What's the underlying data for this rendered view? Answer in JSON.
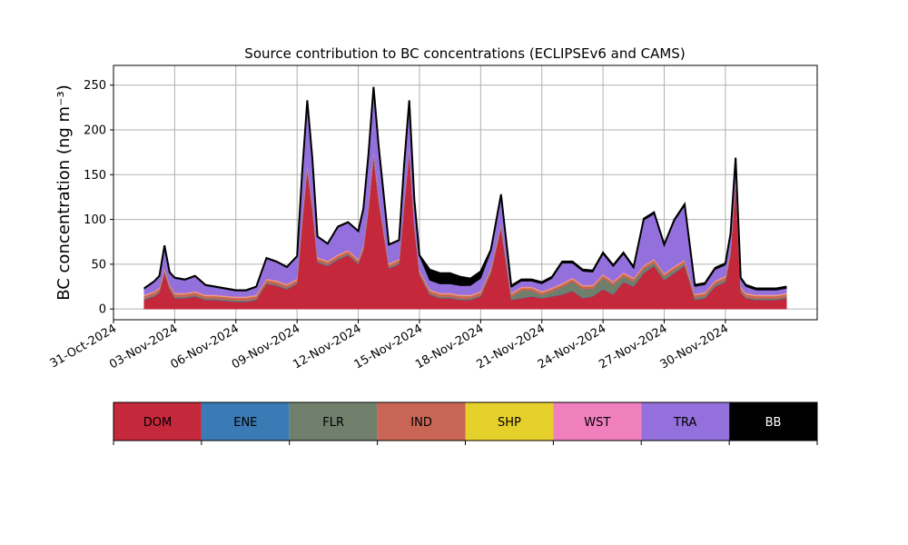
{
  "chart_data": {
    "type": "area",
    "stacked": true,
    "title": "Source contribution to BC concentrations (ECLIPSEv6 and CAMS)",
    "ylabel": "BC concentration (ng m⁻³)",
    "xlabel": "",
    "ylim": [
      -12,
      272
    ],
    "xlim": [
      "2024-10-31T00:00",
      "2024-12-04T12:00"
    ],
    "yticks": [
      0,
      50,
      100,
      150,
      200,
      250
    ],
    "xtick_labels": [
      "31-Oct-2024",
      "03-Nov-2024",
      "06-Nov-2024",
      "09-Nov-2024",
      "12-Nov-2024",
      "15-Nov-2024",
      "18-Nov-2024",
      "21-Nov-2024",
      "24-Nov-2024",
      "27-Nov-2024",
      "30-Nov-2024"
    ],
    "xtick_dates": [
      "2024-10-31",
      "2024-11-03",
      "2024-11-06",
      "2024-11-09",
      "2024-11-12",
      "2024-11-15",
      "2024-11-18",
      "2024-11-21",
      "2024-11-24",
      "2024-11-27",
      "2024-11-30"
    ],
    "grid": true,
    "x": [
      "2024-11-01T12:00",
      "2024-11-02T00:00",
      "2024-11-02T06:00",
      "2024-11-02T12:00",
      "2024-11-02T18:00",
      "2024-11-03T00:00",
      "2024-11-03T12:00",
      "2024-11-04T00:00",
      "2024-11-04T12:00",
      "2024-11-05T00:00",
      "2024-11-05T12:00",
      "2024-11-06T00:00",
      "2024-11-06T12:00",
      "2024-11-07T00:00",
      "2024-11-07T12:00",
      "2024-11-08T00:00",
      "2024-11-08T12:00",
      "2024-11-09T00:00",
      "2024-11-09T06:00",
      "2024-11-09T12:00",
      "2024-11-09T18:00",
      "2024-11-10T00:00",
      "2024-11-10T12:00",
      "2024-11-11T00:00",
      "2024-11-11T12:00",
      "2024-11-12T00:00",
      "2024-11-12T06:00",
      "2024-11-12T12:00",
      "2024-11-12T18:00",
      "2024-11-13T00:00",
      "2024-11-13T12:00",
      "2024-11-14T00:00",
      "2024-11-14T06:00",
      "2024-11-14T12:00",
      "2024-11-14T18:00",
      "2024-11-15T00:00",
      "2024-11-15T12:00",
      "2024-11-16T00:00",
      "2024-11-16T12:00",
      "2024-11-17T00:00",
      "2024-11-17T12:00",
      "2024-11-18T00:00",
      "2024-11-18T12:00",
      "2024-11-19T00:00",
      "2024-11-19T12:00",
      "2024-11-20T00:00",
      "2024-11-20T12:00",
      "2024-11-21T00:00",
      "2024-11-21T12:00",
      "2024-11-22T00:00",
      "2024-11-22T12:00",
      "2024-11-23T00:00",
      "2024-11-23T12:00",
      "2024-11-24T00:00",
      "2024-11-24T12:00",
      "2024-11-25T00:00",
      "2024-11-25T12:00",
      "2024-11-26T00:00",
      "2024-11-26T12:00",
      "2024-11-27T00:00",
      "2024-11-27T12:00",
      "2024-11-28T00:00",
      "2024-11-28T12:00",
      "2024-11-29T00:00",
      "2024-11-29T12:00",
      "2024-11-30T00:00",
      "2024-11-30T06:00",
      "2024-11-30T12:00",
      "2024-11-30T18:00",
      "2024-12-01T00:00",
      "2024-12-01T12:00",
      "2024-12-02T00:00",
      "2024-12-02T12:00",
      "2024-12-03T00:00"
    ],
    "series": [
      {
        "name": "DOM",
        "color": "#c4283a",
        "values": [
          10,
          14,
          18,
          40,
          22,
          12,
          12,
          14,
          10,
          10,
          9,
          8,
          8,
          10,
          28,
          26,
          22,
          28,
          95,
          155,
          110,
          52,
          48,
          55,
          60,
          50,
          65,
          110,
          170,
          120,
          45,
          50,
          115,
          175,
          90,
          38,
          16,
          12,
          12,
          10,
          10,
          14,
          40,
          90,
          10,
          12,
          14,
          12,
          14,
          16,
          20,
          12,
          14,
          22,
          16,
          30,
          25,
          40,
          48,
          32,
          40,
          48,
          10,
          12,
          25,
          30,
          60,
          140,
          18,
          12,
          10,
          10,
          10,
          12
        ]
      },
      {
        "name": "ENE",
        "color": "#3a7ab5",
        "values": [
          0.5,
          0.5,
          0.5,
          0.5,
          0.5,
          0.5,
          0.5,
          0.5,
          0.5,
          0.5,
          0.5,
          0.5,
          0.5,
          0.5,
          0.5,
          0.5,
          0.5,
          0.5,
          0.5,
          0.5,
          0.5,
          0.5,
          0.5,
          0.5,
          0.5,
          0.5,
          0.5,
          0.5,
          0.5,
          0.5,
          0.5,
          0.5,
          0.5,
          0.5,
          0.5,
          0.5,
          0.5,
          0.5,
          0.5,
          0.5,
          0.5,
          0.5,
          0.5,
          0.5,
          0.5,
          0.5,
          0.5,
          0.5,
          0.5,
          0.5,
          0.5,
          0.5,
          0.5,
          0.5,
          0.5,
          0.5,
          0.5,
          0.5,
          0.5,
          0.5,
          0.5,
          0.5,
          0.5,
          0.5,
          0.5,
          0.5,
          0.5,
          0.5,
          0.5,
          0.5,
          0.5,
          0.5,
          0.5,
          0.5
        ]
      },
      {
        "name": "FLR",
        "color": "#6f7f6c",
        "values": [
          1,
          1,
          1,
          1,
          1,
          1,
          1,
          1,
          1,
          1,
          1,
          1,
          1,
          1,
          1,
          1,
          1,
          1,
          1,
          1,
          1,
          1,
          1,
          1,
          1,
          1,
          1,
          1,
          1,
          1,
          1,
          1,
          1,
          1,
          1,
          1,
          1,
          1,
          1,
          1,
          1,
          1,
          1,
          1,
          3,
          8,
          6,
          3,
          5,
          8,
          10,
          10,
          8,
          12,
          10,
          6,
          5,
          4,
          3,
          3,
          3,
          2,
          2,
          2,
          2,
          2,
          2,
          2,
          2,
          1,
          1,
          1,
          1,
          1
        ]
      },
      {
        "name": "IND",
        "color": "#c96555",
        "values": [
          3,
          3,
          3,
          3,
          3,
          3,
          3,
          3,
          3,
          3,
          3,
          3,
          3,
          3,
          3,
          3,
          3,
          3,
          4,
          4,
          4,
          3,
          3,
          3,
          3,
          3,
          3,
          4,
          4,
          3,
          3,
          3,
          3,
          4,
          3,
          3,
          3,
          3,
          3,
          3,
          3,
          3,
          3,
          3,
          3,
          3,
          3,
          3,
          3,
          3,
          3,
          3,
          3,
          3,
          3,
          3,
          3,
          3,
          3,
          3,
          3,
          3,
          3,
          3,
          3,
          3,
          3,
          3,
          3,
          3,
          3,
          3,
          3,
          3
        ]
      },
      {
        "name": "SHP",
        "color": "#e6d02c",
        "values": [
          0.5,
          0.5,
          0.5,
          0.5,
          0.5,
          0.5,
          0.5,
          0.5,
          0.5,
          0.5,
          0.5,
          0.5,
          0.5,
          0.5,
          0.5,
          0.5,
          0.5,
          0.5,
          0.5,
          0.5,
          0.5,
          0.5,
          0.5,
          0.5,
          0.5,
          0.5,
          0.5,
          0.5,
          0.5,
          0.5,
          0.5,
          0.5,
          0.5,
          0.5,
          0.5,
          0.5,
          0.5,
          0.5,
          0.5,
          0.5,
          0.5,
          0.5,
          0.5,
          0.5,
          0.5,
          0.5,
          0.5,
          0.5,
          0.5,
          0.5,
          0.5,
          0.5,
          0.5,
          0.5,
          0.5,
          0.5,
          0.5,
          0.5,
          0.5,
          0.5,
          0.5,
          0.5,
          0.5,
          0.5,
          0.5,
          0.5,
          0.5,
          0.5,
          0.5,
          0.5,
          0.5,
          0.5,
          0.5,
          0.5
        ]
      },
      {
        "name": "WST",
        "color": "#f07fbe",
        "values": [
          1,
          1,
          1,
          1,
          1,
          1,
          1,
          1,
          1,
          1,
          1,
          1,
          1,
          1,
          1,
          1,
          1,
          1,
          1,
          1,
          1,
          1,
          1,
          1,
          1,
          1,
          1,
          1,
          1,
          1,
          1,
          1,
          1,
          1,
          1,
          1,
          1,
          1,
          1,
          1,
          1,
          1,
          1,
          1,
          1,
          1,
          1,
          1,
          1,
          1,
          1,
          1,
          1,
          1,
          1,
          1,
          1,
          1,
          1,
          1,
          1,
          1,
          1,
          1,
          1,
          1,
          1,
          1,
          1,
          1,
          1,
          1,
          1,
          1
        ]
      },
      {
        "name": "TRA",
        "color": "#9370db",
        "values": [
          6,
          10,
          12,
          24,
          12,
          16,
          14,
          16,
          10,
          8,
          7,
          6,
          6,
          8,
          22,
          20,
          18,
          24,
          50,
          70,
          50,
          22,
          18,
          30,
          30,
          30,
          40,
          55,
          70,
          55,
          20,
          20,
          40,
          50,
          25,
          15,
          10,
          10,
          10,
          10,
          10,
          14,
          18,
          30,
          6,
          6,
          6,
          8,
          10,
          22,
          16,
          15,
          14,
          22,
          16,
          20,
          10,
          50,
          50,
          30,
          50,
          60,
          8,
          8,
          12,
          12,
          15,
          20,
          8,
          7,
          5,
          5,
          5,
          5
        ]
      },
      {
        "name": "BB",
        "color": "#000000",
        "values": [
          1,
          1,
          1,
          1,
          1,
          1,
          1,
          1,
          1,
          1,
          1,
          1,
          1,
          1,
          1,
          1,
          1,
          1,
          1,
          1,
          1,
          1,
          1,
          1,
          1,
          1,
          1,
          1,
          1,
          1,
          1,
          1,
          1,
          1,
          1,
          1,
          12,
          12,
          12,
          10,
          8,
          8,
          2,
          2,
          2,
          2,
          2,
          2,
          2,
          2,
          2,
          2,
          2,
          2,
          2,
          2,
          2,
          2,
          2,
          2,
          2,
          2,
          2,
          2,
          2,
          2,
          2,
          2,
          2,
          2,
          2,
          2,
          2,
          2
        ]
      }
    ],
    "legend": {
      "placement": "below",
      "entries": [
        {
          "label": "DOM",
          "color": "#c4283a",
          "text_color": "#000000"
        },
        {
          "label": "ENE",
          "color": "#3a7ab5",
          "text_color": "#000000"
        },
        {
          "label": "FLR",
          "color": "#6f7f6c",
          "text_color": "#000000"
        },
        {
          "label": "IND",
          "color": "#c96555",
          "text_color": "#000000"
        },
        {
          "label": "SHP",
          "color": "#e6d02c",
          "text_color": "#000000"
        },
        {
          "label": "WST",
          "color": "#f07fbe",
          "text_color": "#000000"
        },
        {
          "label": "TRA",
          "color": "#9370db",
          "text_color": "#000000"
        },
        {
          "label": "BB",
          "color": "#000000",
          "text_color": "#ffffff"
        }
      ]
    }
  }
}
